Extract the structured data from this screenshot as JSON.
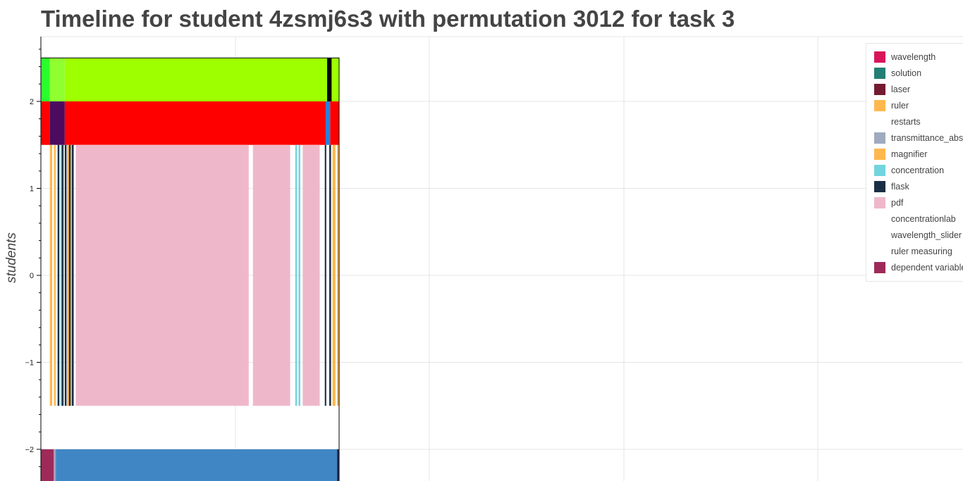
{
  "page": {
    "title": "Timeline for student 4zsmj6s3 with permutation 3012 for task 3"
  },
  "chart_data": {
    "type": "timeline",
    "title": "Timeline for student 4zsmj6s3 with permutation 3012 for task 3",
    "ylabel": "students",
    "xlabel": "",
    "ylim": [
      -2.4,
      2.75
    ],
    "yticks": [
      -2,
      -1,
      0,
      1,
      2
    ],
    "ytick_labels": [
      "−2",
      "−1",
      "0",
      "1",
      "2"
    ],
    "grid": true,
    "legend_position": "top-right",
    "rows": [
      {
        "y": 2.25,
        "segments": [
          {
            "start": 0,
            "end": 3.0,
            "color": "#2bff2b"
          },
          {
            "start": 3.0,
            "end": 8.0,
            "color": "#8fff30"
          },
          {
            "start": 8.0,
            "end": 96.0,
            "color": "#9eff00"
          },
          {
            "start": 96.0,
            "end": 97.5,
            "color": "#000000"
          },
          {
            "start": 97.5,
            "end": 100.0,
            "color": "#9eff00"
          }
        ]
      },
      {
        "y": 1.75,
        "segments": [
          {
            "start": 0,
            "end": 3.0,
            "color": "#ff0000"
          },
          {
            "start": 3.0,
            "end": 8.0,
            "color": "#4b0b5e"
          },
          {
            "start": 8.0,
            "end": 95.5,
            "color": "#ff0000"
          },
          {
            "start": 95.5,
            "end": 97.0,
            "color": "#2b7fd9"
          },
          {
            "start": 97.0,
            "end": 100.0,
            "color": "#ff0000"
          }
        ]
      },
      {
        "y": 0,
        "y0": -1.5,
        "y1": 1.5,
        "segments": [
          {
            "start": 3.0,
            "end": 3.8,
            "color": "#ffb84d"
          },
          {
            "start": 3.8,
            "end": 4.4,
            "color": "#ffffff"
          },
          {
            "start": 4.4,
            "end": 5.0,
            "color": "#ffb84d"
          },
          {
            "start": 5.6,
            "end": 6.2,
            "color": "#1b2e45"
          },
          {
            "start": 6.6,
            "end": 7.0,
            "color": "#72d4de"
          },
          {
            "start": 7.0,
            "end": 7.6,
            "color": "#1b2e45"
          },
          {
            "start": 8.0,
            "end": 8.6,
            "color": "#1b2e45"
          },
          {
            "start": 8.8,
            "end": 9.4,
            "color": "#ffb84d"
          },
          {
            "start": 9.4,
            "end": 10.0,
            "color": "#1b2e45"
          },
          {
            "start": 10.0,
            "end": 10.4,
            "color": "#ffb84d"
          },
          {
            "start": 10.4,
            "end": 11.0,
            "color": "#1b2e45"
          },
          {
            "start": 11.7,
            "end": 69.7,
            "color": "#efb8ca"
          },
          {
            "start": 71.1,
            "end": 83.6,
            "color": "#efb8ca"
          },
          {
            "start": 85.3,
            "end": 85.9,
            "color": "#72d4de"
          },
          {
            "start": 86.4,
            "end": 87.0,
            "color": "#72d4de"
          },
          {
            "start": 87.8,
            "end": 93.5,
            "color": "#efb8ca"
          },
          {
            "start": 95.2,
            "end": 95.7,
            "color": "#1b2e45"
          },
          {
            "start": 96.7,
            "end": 97.3,
            "color": "#1b2e45"
          },
          {
            "start": 97.8,
            "end": 98.8,
            "color": "#ffb84d"
          },
          {
            "start": 99.3,
            "end": 100.0,
            "color": "#ffb84d"
          }
        ]
      },
      {
        "y": -2.25,
        "segments": [
          {
            "start": 0,
            "end": 4.3,
            "color": "#9e2a5a"
          },
          {
            "start": 4.3,
            "end": 5.0,
            "color": "#a999b8"
          },
          {
            "start": 5.0,
            "end": 99.3,
            "color": "#4186c4"
          },
          {
            "start": 99.3,
            "end": 100.0,
            "color": "#2a2a5e"
          }
        ]
      }
    ],
    "legend": [
      {
        "label": "wavelength",
        "color": "#d8155a"
      },
      {
        "label": "solution",
        "color": "#237f73"
      },
      {
        "label": "laser",
        "color": "#741b30"
      },
      {
        "label": "ruler",
        "color": "#ffb84d"
      },
      {
        "label": "restarts",
        "color": "#ffffff"
      },
      {
        "label": "transmittance_abs",
        "color": "#9eaabf"
      },
      {
        "label": "magnifier",
        "color": "#ffb84d"
      },
      {
        "label": "concentration",
        "color": "#72d4de"
      },
      {
        "label": "flask",
        "color": "#1b2e45"
      },
      {
        "label": "pdf",
        "color": "#efb8ca"
      },
      {
        "label": "concentrationlab",
        "color": "#ffffff"
      },
      {
        "label": "wavelength_slider",
        "color": "#ffffff"
      },
      {
        "label": "ruler measuring",
        "color": "#ffffff"
      },
      {
        "label": "dependent variable",
        "color": "#9e2a5a"
      }
    ]
  }
}
